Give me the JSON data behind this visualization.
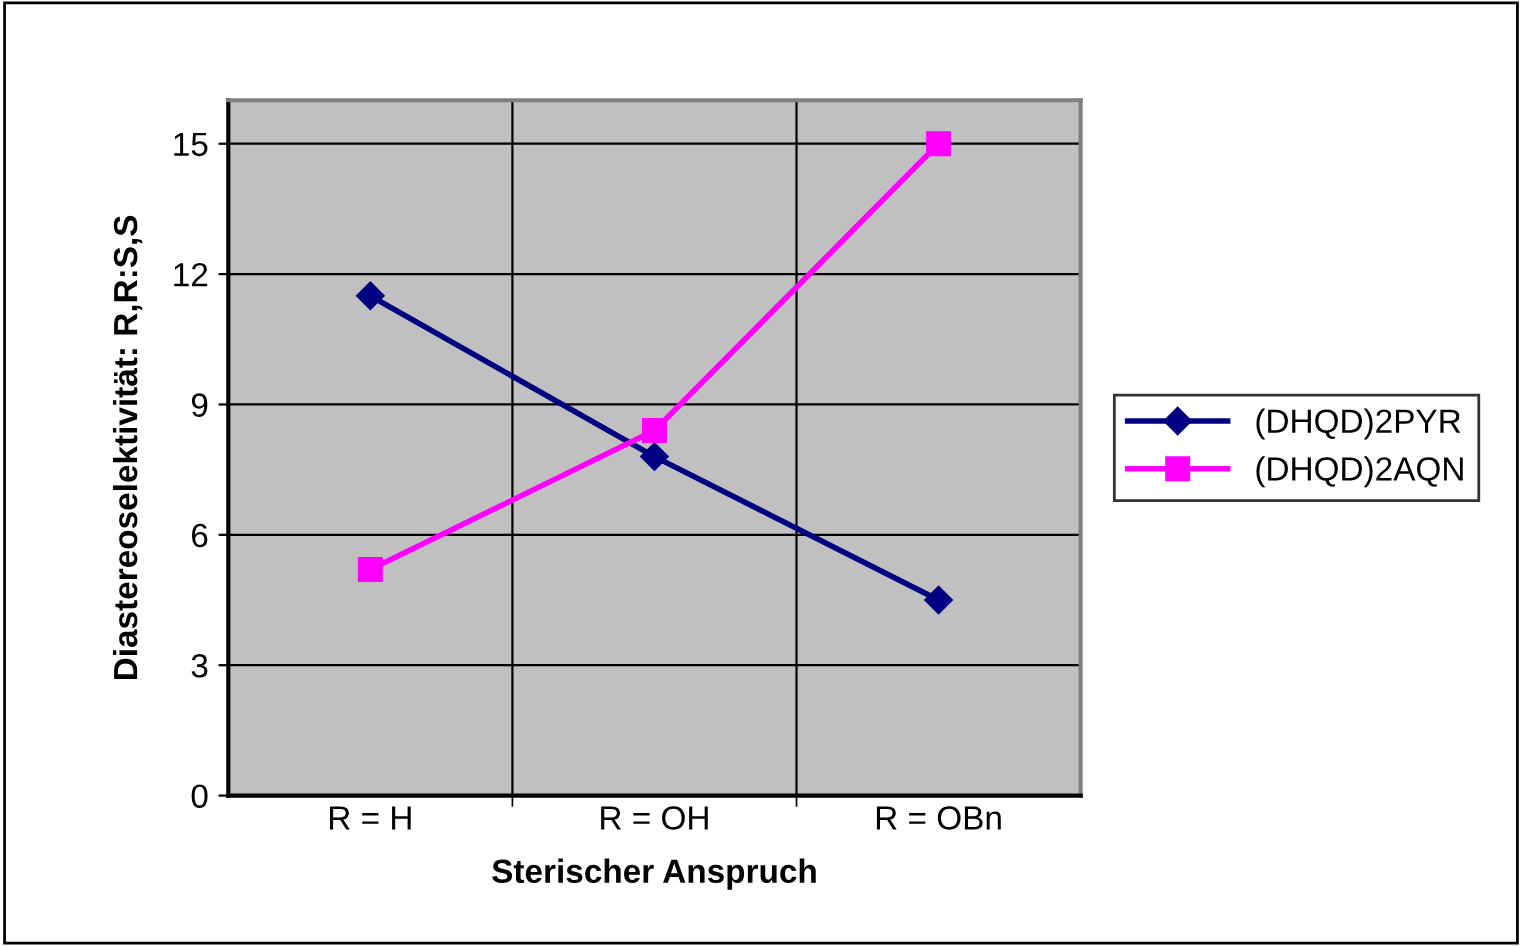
{
  "chart_data": {
    "type": "line",
    "xlabel": "Sterischer Anspruch",
    "ylabel": "Diastereoselektivität: R,R:S,S",
    "categories": [
      "R = H",
      "R = OH",
      "R = OBn"
    ],
    "series": [
      {
        "name": "(DHQD)2PYR",
        "color": "#000080",
        "marker": "diamond",
        "values": [
          11.5,
          7.8,
          4.5
        ]
      },
      {
        "name": "(DHQD)2AQN",
        "color": "#ff00ff",
        "marker": "square",
        "values": [
          5.2,
          8.4,
          15
        ]
      }
    ],
    "ylim": [
      0,
      16
    ],
    "yticks": [
      0,
      3,
      6,
      9,
      12,
      15
    ],
    "grid": true,
    "legend": "right",
    "line_style": "solid"
  }
}
